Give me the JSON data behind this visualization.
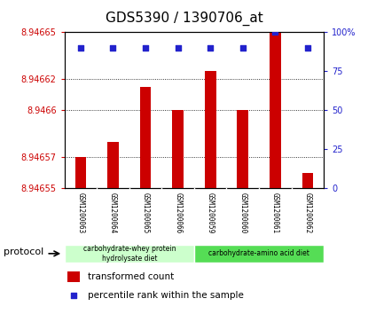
{
  "title": "GDS5390 / 1390706_at",
  "samples": [
    "GSM1200063",
    "GSM1200064",
    "GSM1200065",
    "GSM1200066",
    "GSM1200059",
    "GSM1200060",
    "GSM1200061",
    "GSM1200062"
  ],
  "bar_values": [
    8.94657,
    8.94658,
    8.946615,
    8.9466,
    8.946625,
    8.9466,
    8.94665,
    8.94656
  ],
  "percentile_values": [
    90,
    90,
    90,
    90,
    90,
    90,
    100,
    90
  ],
  "ylim_left": [
    8.94655,
    8.94665
  ],
  "ylim_right": [
    0,
    100
  ],
  "yticks_left": [
    8.94655,
    8.94657,
    8.9466,
    8.94662,
    8.94665
  ],
  "ytick_labels_left": [
    "8.94655",
    "8.94657",
    "8.9466",
    "8.94662",
    "8.94665"
  ],
  "yticks_right": [
    0,
    25,
    50,
    75,
    100
  ],
  "ytick_labels_right": [
    "0",
    "25",
    "50",
    "75",
    "100%"
  ],
  "bar_color": "#cc0000",
  "dot_color": "#2222cc",
  "bar_bottom": 8.94655,
  "groups": [
    {
      "label": "carbohydrate-whey protein\nhydrolysate diet",
      "start": 0,
      "end": 4,
      "color": "#ccffcc"
    },
    {
      "label": "carbohydrate-amino acid diet",
      "start": 4,
      "end": 8,
      "color": "#55dd55"
    }
  ],
  "protocol_label": "protocol",
  "legend_items": [
    {
      "color": "#cc0000",
      "label": "transformed count"
    },
    {
      "color": "#2222cc",
      "label": "percentile rank within the sample"
    }
  ],
  "plot_bg": "#ffffff",
  "sample_bg": "#d8d8d8",
  "tick_label_color_left": "#cc0000",
  "tick_label_color_right": "#2222cc",
  "title_fontsize": 11,
  "tick_fontsize": 7,
  "sample_fontsize": 5.5,
  "legend_fontsize": 7.5,
  "protocol_fontsize": 8
}
